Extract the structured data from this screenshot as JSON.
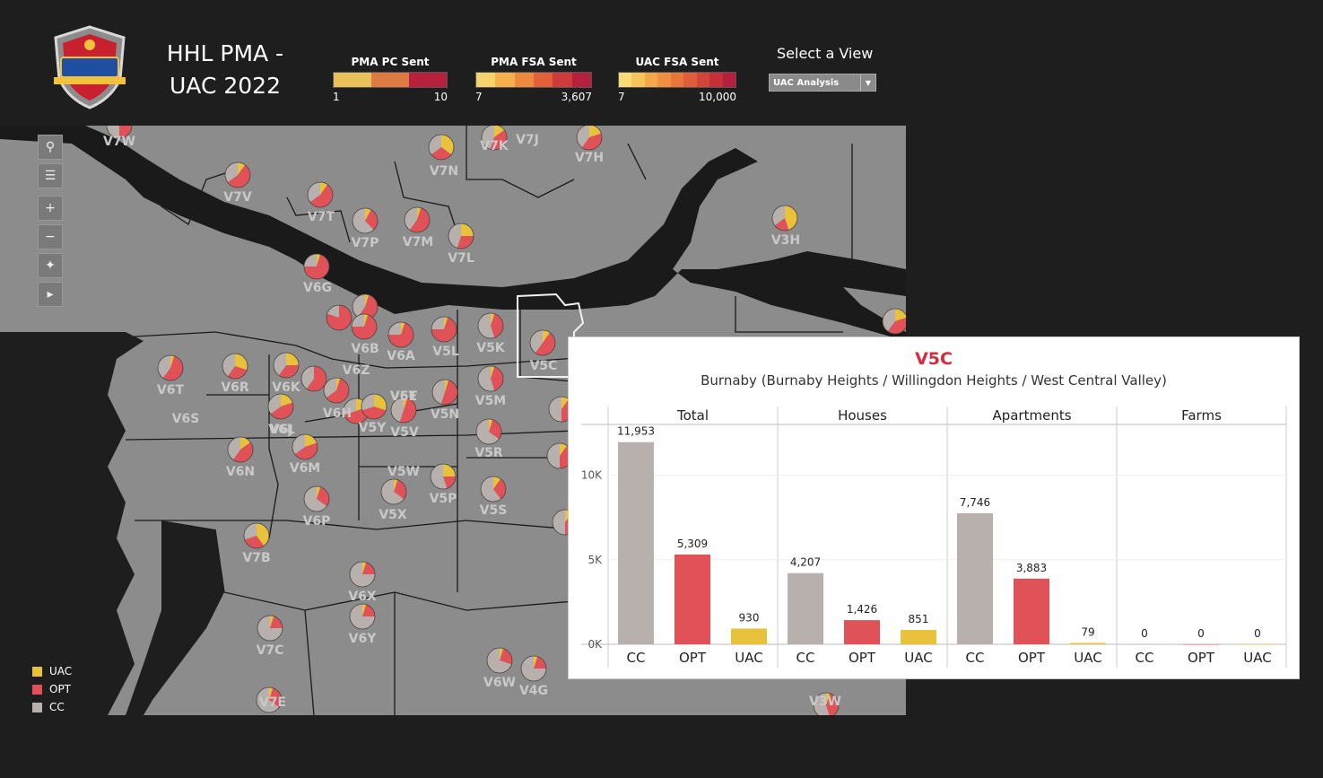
{
  "header": {
    "title_line1": "HHL PMA -",
    "title_line2": "UAC 2022"
  },
  "legends": [
    {
      "label": "PMA PC Sent",
      "min": "1",
      "max": "10",
      "colors": [
        "#e8c15a",
        "#e07a45",
        "#b5213c"
      ]
    },
    {
      "label": "PMA FSA Sent",
      "min": "7",
      "max": "3,607",
      "colors": [
        "#f6d36d",
        "#f4b04c",
        "#ee8a3f",
        "#e3603a",
        "#cf3a3a",
        "#b5213c"
      ]
    },
    {
      "label": "UAC FSA Sent",
      "min": "7",
      "max": "10,000",
      "colors": [
        "#f9db78",
        "#f6c45a",
        "#f2a84b",
        "#ee9040",
        "#e8763b",
        "#e05d3a",
        "#d34538",
        "#c53038",
        "#b5213c"
      ]
    }
  ],
  "view_selector": {
    "label": "Select a View",
    "selected": "UAC Analysis"
  },
  "category_legend": [
    {
      "label": "UAC",
      "color": "#e8c23a"
    },
    {
      "label": "OPT",
      "color": "#e05258"
    },
    {
      "label": "CC",
      "color": "#b8b0ac"
    }
  ],
  "map_labels": [
    "V7W",
    "V7K",
    "V7J",
    "V7H",
    "V7N",
    "V7V",
    "V7T",
    "V7P",
    "V7M",
    "V7L",
    "V3H",
    "V6G",
    "V6B",
    "V6Z",
    "V6A",
    "V5L",
    "V5K",
    "V5C",
    "V6T",
    "V6R",
    "V6K",
    "V6S",
    "V6J",
    "V6H",
    "V6E",
    "V5T",
    "V5N",
    "V5M",
    "V5R",
    "V6L",
    "V5Y",
    "V5V",
    "V5W",
    "V6N",
    "V6M",
    "V5P",
    "V5S",
    "V6P",
    "V5X",
    "V7B",
    "V6X",
    "V6Y",
    "V7C",
    "V7E",
    "V6W",
    "V4G",
    "V3W"
  ],
  "tooltip": {
    "title": "V5C",
    "subtitle": "Burnaby (Burnaby Heights / Willingdon Heights / West Central Valley)",
    "panels": [
      "Total",
      "Houses",
      "Apartments",
      "Farms"
    ],
    "y_ticks": [
      "10K",
      "5K",
      "0K"
    ]
  },
  "chart_data": {
    "type": "bar",
    "title": "V5C",
    "ylim": [
      0,
      13000
    ],
    "panels": [
      "Total",
      "Houses",
      "Apartments",
      "Farms"
    ],
    "categories": [
      "CC",
      "OPT",
      "UAC"
    ],
    "series": [
      {
        "panel": "Total",
        "values": [
          11953,
          5309,
          930
        ],
        "labels": [
          "11,953",
          "5,309",
          "930"
        ]
      },
      {
        "panel": "Houses",
        "values": [
          4207,
          1426,
          851
        ],
        "labels": [
          "4,207",
          "1,426",
          "851"
        ]
      },
      {
        "panel": "Apartments",
        "values": [
          7746,
          3883,
          79
        ],
        "labels": [
          "7,746",
          "3,883",
          "79"
        ]
      },
      {
        "panel": "Farms",
        "values": [
          0,
          0,
          0
        ],
        "labels": [
          "0",
          "0",
          "0"
        ]
      }
    ],
    "colors": {
      "CC": "#b8b0ac",
      "OPT": "#e05258",
      "UAC": "#e8c23a"
    }
  }
}
